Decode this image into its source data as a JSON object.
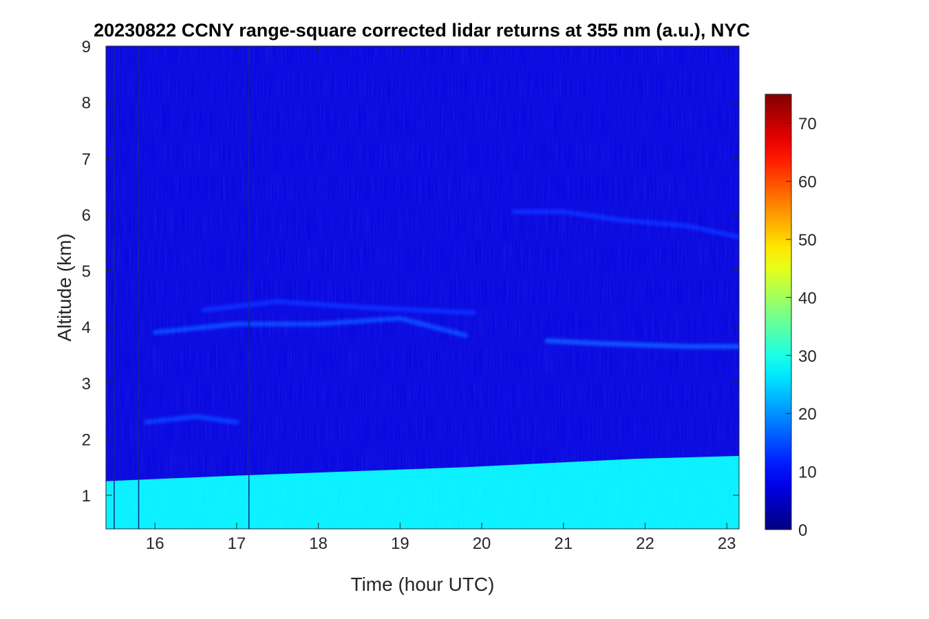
{
  "chart_data": {
    "type": "heatmap",
    "title": "20230822 CCNY range-square corrected lidar returns at 355 nm (a.u.), NYC",
    "xlabel": "Time (hour UTC)",
    "ylabel": "Altitude (km)",
    "xlim": [
      15.4,
      23.15
    ],
    "ylim": [
      0.4,
      9
    ],
    "xticks": [
      16,
      17,
      18,
      19,
      20,
      21,
      22,
      23
    ],
    "yticks": [
      1,
      2,
      3,
      4,
      5,
      6,
      7,
      8,
      9
    ],
    "colorbar": {
      "colormap": "jet",
      "range": [
        0,
        75
      ],
      "ticks": [
        0,
        10,
        20,
        30,
        40,
        50,
        60,
        70
      ],
      "placement": "right"
    },
    "grid": false,
    "features": {
      "boundary_layer_top_km": [
        [
          15.4,
          1.25
        ],
        [
          17.0,
          1.35
        ],
        [
          19.8,
          1.5
        ],
        [
          21.9,
          1.65
        ],
        [
          23.15,
          1.7
        ]
      ],
      "boundary_layer_value": 27,
      "free_troposphere_value": 7,
      "aerosol_layers": [
        {
          "points": [
            [
              16.0,
              3.9
            ],
            [
              17.0,
              4.05
            ],
            [
              18.0,
              4.05
            ],
            [
              19.0,
              4.15
            ],
            [
              19.8,
              3.85
            ]
          ],
          "value": 14
        },
        {
          "points": [
            [
              16.6,
              4.3
            ],
            [
              17.5,
              4.45
            ],
            [
              18.5,
              4.35
            ],
            [
              19.9,
              4.25
            ]
          ],
          "value": 12
        },
        {
          "points": [
            [
              20.8,
              3.75
            ],
            [
              21.5,
              3.7
            ],
            [
              22.5,
              3.65
            ],
            [
              23.15,
              3.65
            ]
          ],
          "value": 15
        },
        {
          "points": [
            [
              20.4,
              6.05
            ],
            [
              21.0,
              6.05
            ],
            [
              21.7,
              5.9
            ],
            [
              22.5,
              5.8
            ],
            [
              23.15,
              5.6
            ]
          ],
          "value": 12
        },
        {
          "points": [
            [
              15.9,
              2.3
            ],
            [
              16.5,
              2.4
            ],
            [
              17.0,
              2.3
            ]
          ],
          "value": 13
        }
      ],
      "vertical_lines_hour": [
        15.5,
        15.8,
        17.15
      ]
    }
  }
}
